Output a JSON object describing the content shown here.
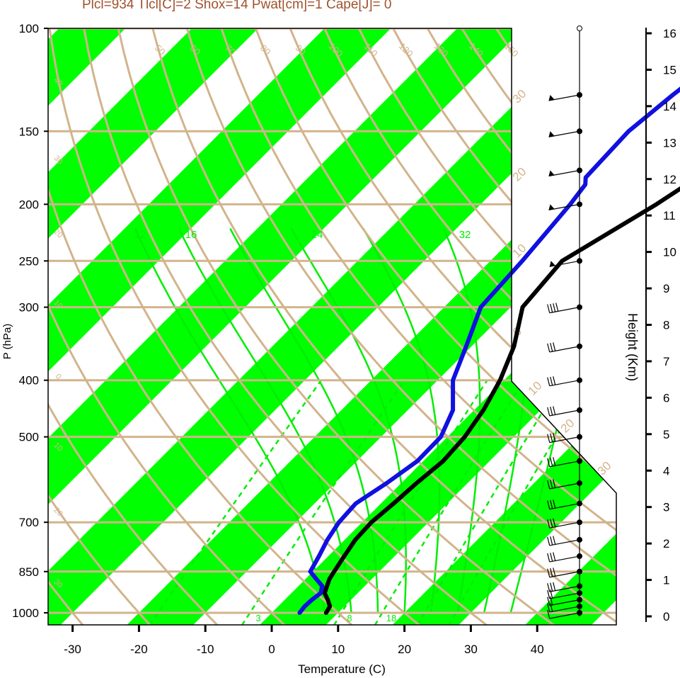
{
  "header": {
    "stats_line": "Plcl=934 Tlcl[C]=2 Shox=14 Pwat[cm]=1 Cape[J]= 0"
  },
  "colors": {
    "temperature": "#000000",
    "dewpoint": "#1010e0",
    "dry_adiabat": "#d2b48c",
    "isobar": "#d2b48c",
    "isotherm_band": "#00ff00",
    "moist_adiabat": "#00ee00",
    "mixing_ratio": "#00ee00",
    "stats_text": "#a0522d"
  },
  "chart_data": {
    "type": "line",
    "subtype": "skew-T log-P",
    "xlabel": "Temperature (C)",
    "ylabel": "P (hPa)",
    "y2label": "Height (Km)",
    "xlim": [
      -33,
      36
    ],
    "ylim": [
      1050,
      100
    ],
    "x_ticks": [
      "-30",
      "-20",
      "-10",
      "0",
      "10",
      "20",
      "30",
      "40"
    ],
    "x_tick_values": [
      -30,
      -20,
      -10,
      0,
      10,
      20,
      30,
      40
    ],
    "y_ticks": [
      "100",
      "150",
      "200",
      "250",
      "300",
      "400",
      "500",
      "700",
      "850",
      "1000"
    ],
    "y_tick_values": [
      100,
      150,
      200,
      250,
      300,
      400,
      500,
      700,
      850,
      1000
    ],
    "height_ticks": [
      "0",
      "1",
      "2",
      "3",
      "4",
      "5",
      "6",
      "7",
      "8",
      "9",
      "10",
      "11",
      "12",
      "13",
      "14",
      "15",
      "16"
    ],
    "dry_adiabat_labels": [
      "50",
      "60",
      "70",
      "80",
      "90",
      "100",
      "110",
      "120",
      "130",
      "140",
      "150",
      "160"
    ],
    "dry_adiabat_values": [
      50,
      60,
      70,
      80,
      90,
      100,
      110,
      120,
      130,
      140,
      150,
      160
    ],
    "moist_adiabat_labels": [
      "12",
      "16",
      "24",
      "32"
    ],
    "mixing_ratio_labels": [
      "3",
      "8",
      "18"
    ],
    "side_isotherm_labels": [
      "30",
      "20",
      "10",
      "0",
      "10",
      "20",
      "30"
    ],
    "left_isotherm_labels": [
      "40",
      "30",
      "20",
      "10",
      "0",
      "10",
      "20",
      "30"
    ],
    "series": [
      {
        "name": "Temperature",
        "p": [
          1000,
          975,
          950,
          925,
          900,
          875,
          850,
          800,
          750,
          700,
          650,
          600,
          550,
          500,
          450,
          400,
          350,
          300,
          250,
          200,
          180,
          150,
          130,
          115
        ],
        "temp": [
          8.2,
          7.8,
          6.5,
          5.0,
          4.3,
          3.6,
          3.2,
          2.4,
          1.6,
          1.4,
          1.9,
          2.3,
          3.0,
          2.6,
          1.4,
          -0.6,
          -3.6,
          -8.2,
          -9.2,
          -3.5,
          -1.4,
          1.5,
          3.0,
          5.0
        ]
      },
      {
        "name": "Dewpoint",
        "p": [
          1000,
          975,
          950,
          925,
          900,
          875,
          850,
          800,
          750,
          700,
          650,
          600,
          550,
          500,
          450,
          400,
          350,
          300,
          250,
          200,
          185,
          180,
          150,
          130,
          115
        ],
        "temp": [
          4.2,
          4.0,
          4.1,
          4.4,
          3.6,
          1.6,
          -0.4,
          -1.4,
          -2.6,
          -3.5,
          -3.8,
          -2.2,
          -0.9,
          -1.0,
          -3.2,
          -7.7,
          -10.8,
          -14.5,
          -15.2,
          -16.5,
          -17.2,
          -18.2,
          -18.7,
          -17.5,
          -16.2
        ]
      }
    ],
    "wind_barbs": {
      "p": [
        1000,
        975,
        950,
        925,
        900,
        850,
        800,
        750,
        700,
        650,
        600,
        550,
        500,
        450,
        400,
        350,
        300,
        250,
        200,
        175,
        150,
        130
      ],
      "speed_kt": [
        10,
        15,
        20,
        20,
        25,
        25,
        25,
        25,
        25,
        30,
        30,
        30,
        30,
        30,
        30,
        30,
        35,
        30,
        30,
        35,
        40,
        35
      ],
      "label": "wind barbs"
    },
    "grid": true
  }
}
